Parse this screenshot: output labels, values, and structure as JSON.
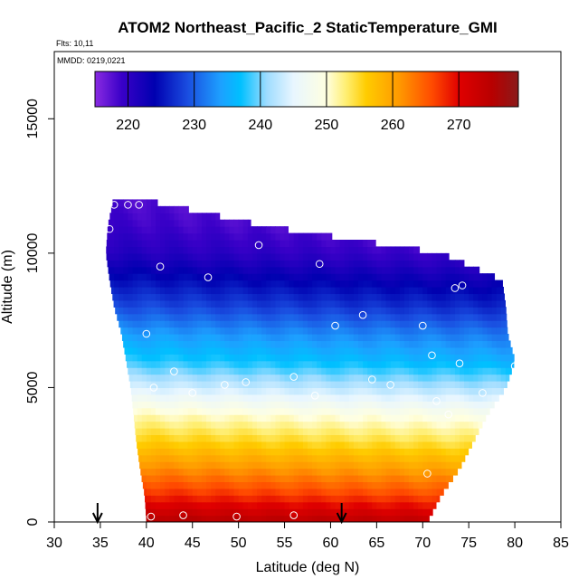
{
  "chart_data": {
    "type": "heatmap",
    "title": "ATOM2 Northeast_Pacific_2 StaticTemperature_GMI",
    "flights_label": "Flts: 10,11",
    "dates_label": "MMDD: 0219,0221",
    "xlabel": "Latitude (deg N)",
    "ylabel": "Altitude (m)",
    "xlim": [
      30,
      85
    ],
    "ylim": [
      0,
      17500
    ],
    "x_ticks": [
      "30",
      "35",
      "40",
      "45",
      "50",
      "55",
      "60",
      "65",
      "70",
      "75",
      "80",
      "85"
    ],
    "y_ticks": [
      "0",
      "5000",
      "10000",
      "15000"
    ],
    "colorbar": {
      "range": [
        215,
        279
      ],
      "ticks": [
        "220",
        "230",
        "240",
        "250",
        "260",
        "270"
      ],
      "stops": [
        {
          "t": 215,
          "c": "#8a2be2"
        },
        {
          "t": 219,
          "c": "#3a00c8"
        },
        {
          "t": 224,
          "c": "#0000b0"
        },
        {
          "t": 229,
          "c": "#1a4de0"
        },
        {
          "t": 234,
          "c": "#1da0ff"
        },
        {
          "t": 237,
          "c": "#00c0ff"
        },
        {
          "t": 241,
          "c": "#9fdcff"
        },
        {
          "t": 245,
          "c": "#e8f6ff"
        },
        {
          "t": 250,
          "c": "#ffffe0"
        },
        {
          "t": 253,
          "c": "#ffee70"
        },
        {
          "t": 256,
          "c": "#ffcc00"
        },
        {
          "t": 261,
          "c": "#ff9900"
        },
        {
          "t": 266,
          "c": "#ff4a00"
        },
        {
          "t": 270,
          "c": "#e00000"
        },
        {
          "t": 275,
          "c": "#b80000"
        },
        {
          "t": 279,
          "c": "#8a1a1a"
        }
      ]
    },
    "profile_bounds": {
      "altitude": [
        0,
        1000,
        2000,
        3000,
        4000,
        5000,
        6000,
        7000,
        8000,
        9000,
        10000,
        11000,
        12000
      ],
      "lat_min": [
        40,
        39.8,
        39.3,
        38.9,
        38.6,
        38.3,
        37.8,
        37.3,
        36.5,
        36,
        35.6,
        35.8,
        36.4
      ],
      "lat_max": [
        70.5,
        72.0,
        74.0,
        75.5,
        77.0,
        79.0,
        80.0,
        79.2,
        79.0,
        78.6,
        72.0,
        53.0,
        39.5
      ]
    },
    "temperature_profile": {
      "altitude": [
        0,
        1000,
        2000,
        3000,
        4000,
        5000,
        6000,
        7000,
        8000,
        9000,
        10000,
        11000,
        12000
      ],
      "temperature": [
        275,
        267,
        261,
        255,
        250,
        243,
        237,
        233,
        228,
        224,
        220,
        218,
        217
      ]
    },
    "arrows_latitude": [
      34.7,
      61.2
    ],
    "observations": [
      {
        "lat": 36.5,
        "alt": 11800
      },
      {
        "lat": 38.0,
        "alt": 11800
      },
      {
        "lat": 39.2,
        "alt": 11800
      },
      {
        "lat": 36.0,
        "alt": 10900
      },
      {
        "lat": 67.0,
        "alt": 10600
      },
      {
        "lat": 52.2,
        "alt": 10300
      },
      {
        "lat": 74.2,
        "alt": 10000
      },
      {
        "lat": 41.5,
        "alt": 9500
      },
      {
        "lat": 58.8,
        "alt": 9600
      },
      {
        "lat": 77.0,
        "alt": 9600
      },
      {
        "lat": 78.0,
        "alt": 9600
      },
      {
        "lat": 46.7,
        "alt": 9100
      },
      {
        "lat": 73.5,
        "alt": 8700
      },
      {
        "lat": 74.3,
        "alt": 8800
      },
      {
        "lat": 63.5,
        "alt": 7700
      },
      {
        "lat": 60.5,
        "alt": 7300
      },
      {
        "lat": 70.0,
        "alt": 7300
      },
      {
        "lat": 40.0,
        "alt": 7000
      },
      {
        "lat": 71.0,
        "alt": 6200
      },
      {
        "lat": 74.0,
        "alt": 5900
      },
      {
        "lat": 80.0,
        "alt": 5800
      },
      {
        "lat": 43.0,
        "alt": 5600
      },
      {
        "lat": 56.0,
        "alt": 5400
      },
      {
        "lat": 64.5,
        "alt": 5300
      },
      {
        "lat": 50.8,
        "alt": 5200
      },
      {
        "lat": 48.5,
        "alt": 5100
      },
      {
        "lat": 66.5,
        "alt": 5100
      },
      {
        "lat": 40.8,
        "alt": 5000
      },
      {
        "lat": 45.0,
        "alt": 4800
      },
      {
        "lat": 58.3,
        "alt": 4700
      },
      {
        "lat": 76.5,
        "alt": 4800
      },
      {
        "lat": 71.5,
        "alt": 4500
      },
      {
        "lat": 72.8,
        "alt": 4000
      },
      {
        "lat": 70.5,
        "alt": 1800
      },
      {
        "lat": 40.5,
        "alt": 200
      },
      {
        "lat": 44.0,
        "alt": 250
      },
      {
        "lat": 49.8,
        "alt": 200
      },
      {
        "lat": 56.0,
        "alt": 250
      }
    ]
  }
}
